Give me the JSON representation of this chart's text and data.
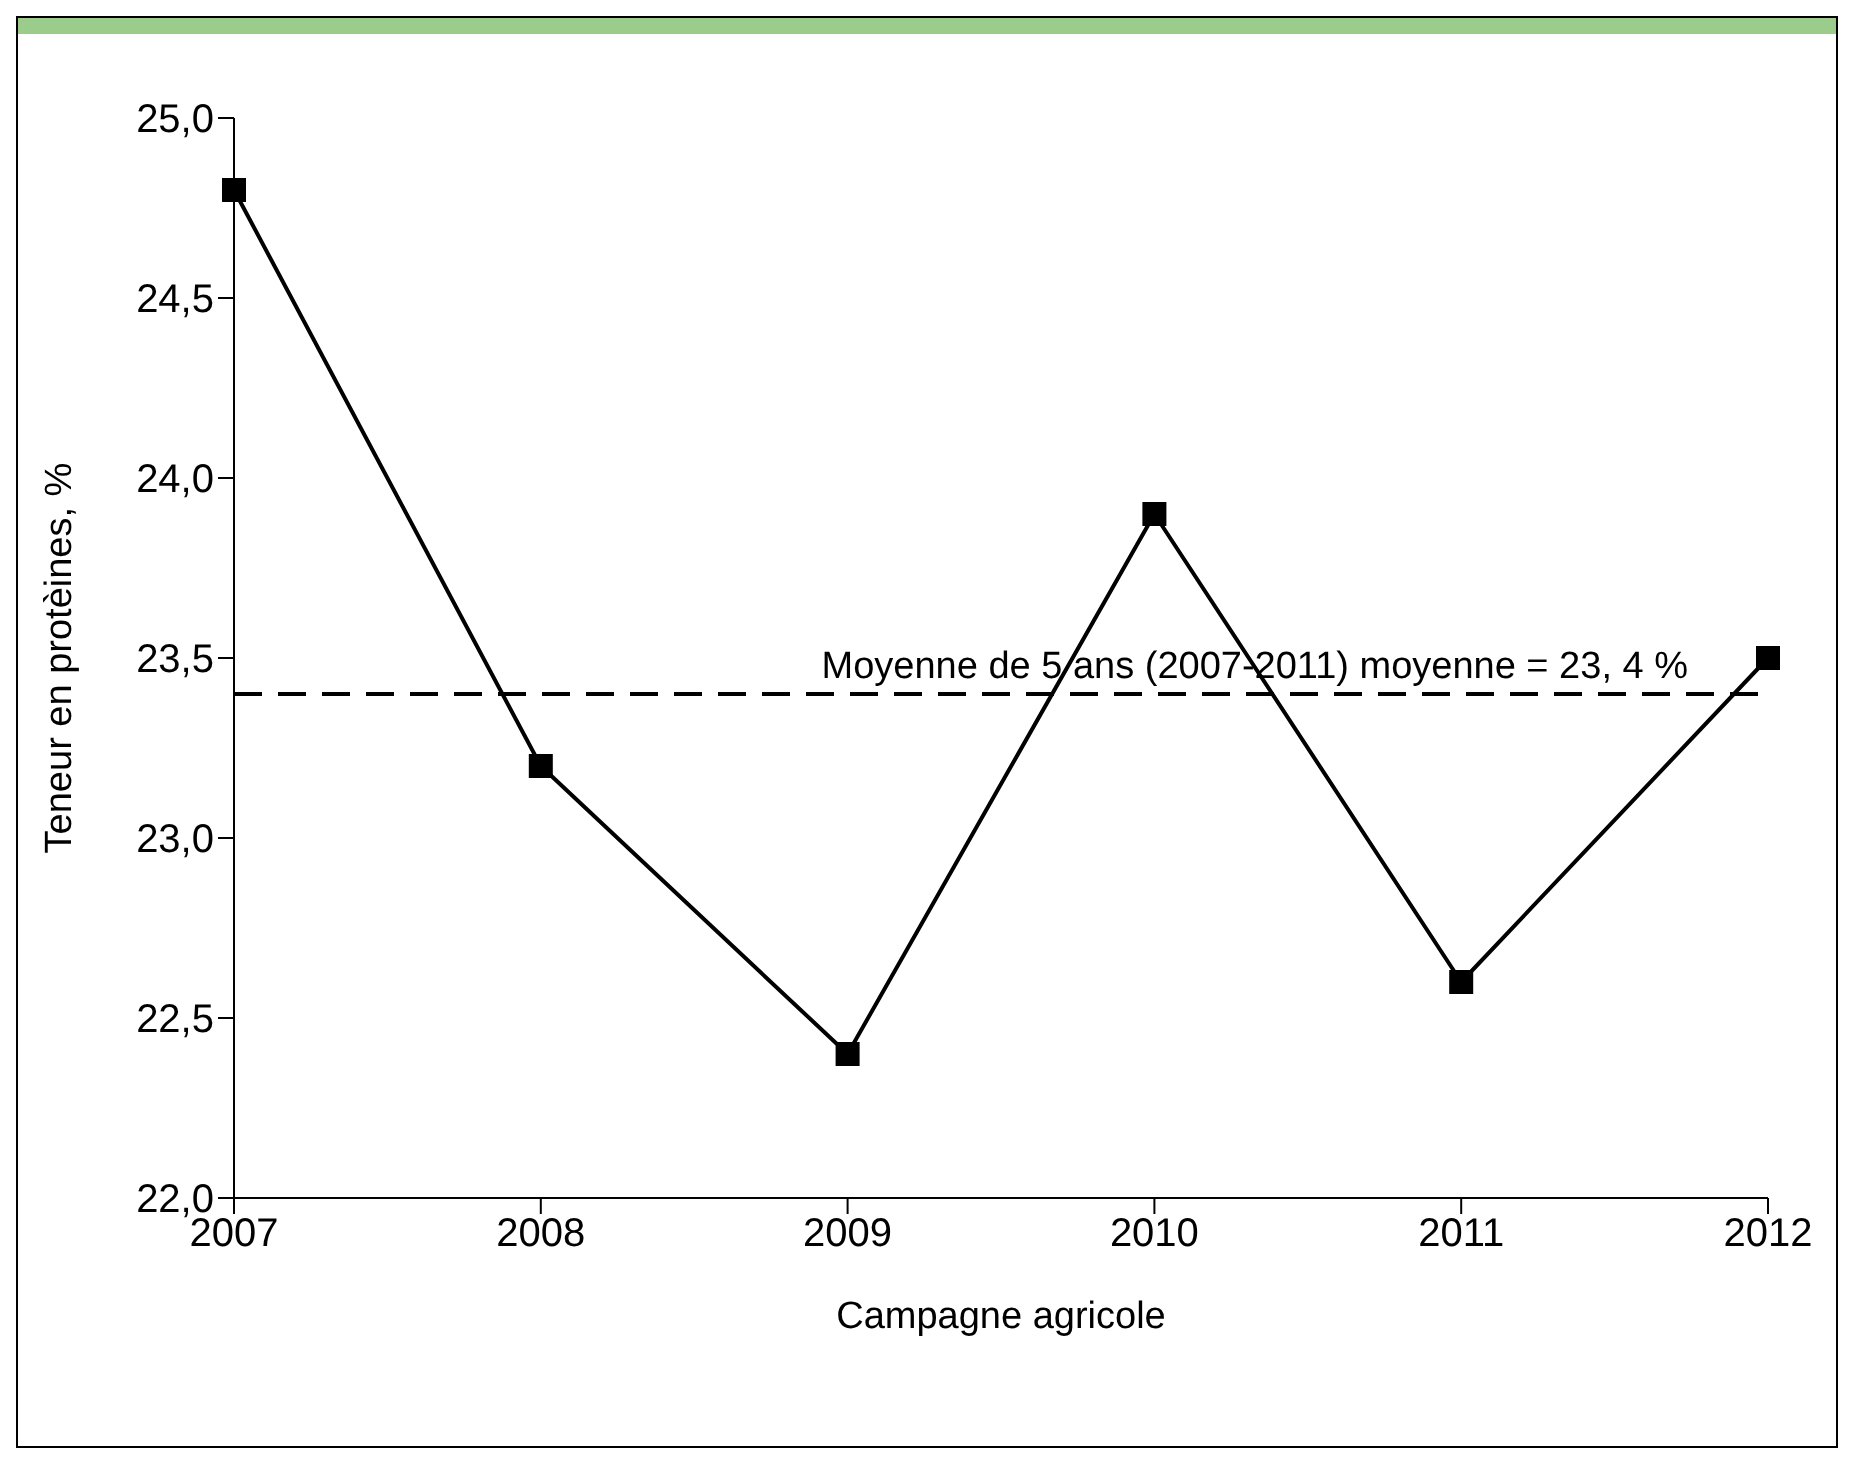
{
  "chart_data": {
    "type": "line",
    "xlabel": "Campagne agricole",
    "ylabel": "Teneur en protèines, %",
    "x": [
      2007,
      2008,
      2009,
      2010,
      2011,
      2012
    ],
    "series": [
      {
        "color": "#000000",
        "values": [
          24.8,
          23.2,
          22.4,
          23.9,
          22.6,
          23.5
        ]
      }
    ],
    "xlim": [
      2007,
      2012
    ],
    "xticks": [
      2007,
      2008,
      2009,
      2010,
      2011,
      2012
    ],
    "ylim": [
      22,
      25
    ],
    "yticks": [
      {
        "value": 22,
        "label": "22,0"
      },
      {
        "value": 22.5,
        "label": "22,5"
      },
      {
        "value": 23,
        "label": "23,0"
      },
      {
        "value": 23.5,
        "label": "23,5"
      },
      {
        "value": 24,
        "label": "24,0"
      },
      {
        "value": 24.5,
        "label": "24,5"
      },
      {
        "value": 25,
        "label": "25,0"
      }
    ],
    "ref_lines": [
      {
        "axis": "y",
        "value": 23.4,
        "label": "Moyenne de 5 ans (2007-2011) moyenne = 23, 4 %",
        "color": "#000000",
        "line_style": "dashed"
      }
    ],
    "grid": false,
    "legend": false,
    "marker": "square",
    "line_style": "solid"
  }
}
